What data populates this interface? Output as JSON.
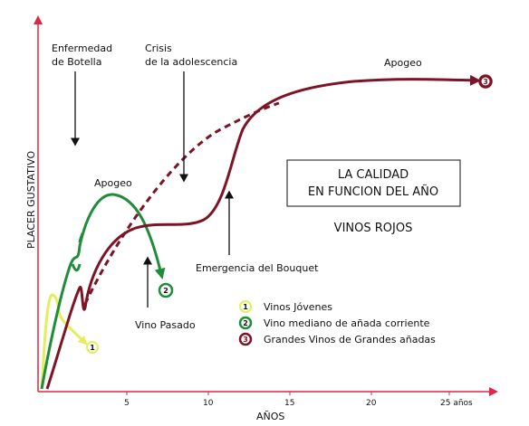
{
  "axes": {
    "x_title": "AÑOS",
    "y_title": "PLACER GUSTATIVO",
    "ticks": [
      "5",
      "10",
      "15",
      "20",
      "25 años"
    ]
  },
  "annotations": {
    "enfermedad": [
      "Enfermedad",
      "de Botella"
    ],
    "crisis": [
      "Crisis",
      "de la adolescencia"
    ],
    "apogeo_top": "Apogeo",
    "apogeo_mid": "Apogeo",
    "vino_pasado": "Vino Pasado",
    "emergencia": "Emergencia del Bouquet"
  },
  "title_box": {
    "line1": "LA CALIDAD",
    "line2": "EN FUNCION DEL AÑO",
    "subtitle": "VINOS ROJOS"
  },
  "legend": [
    {
      "num": "1",
      "label": "Vinos Jóvenes",
      "color": "#e3ee5a"
    },
    {
      "num": "2",
      "label": "Vino mediano de añada corriente",
      "color": "#1f8c3a"
    },
    {
      "num": "3",
      "label": "Grandes Vinos de Grandes añadas",
      "color": "#7d1425"
    }
  ],
  "colors": {
    "axis": "#e0244a",
    "young": "#e3ee5a",
    "medium": "#1f8c3a",
    "grand": "#7d1425"
  }
}
